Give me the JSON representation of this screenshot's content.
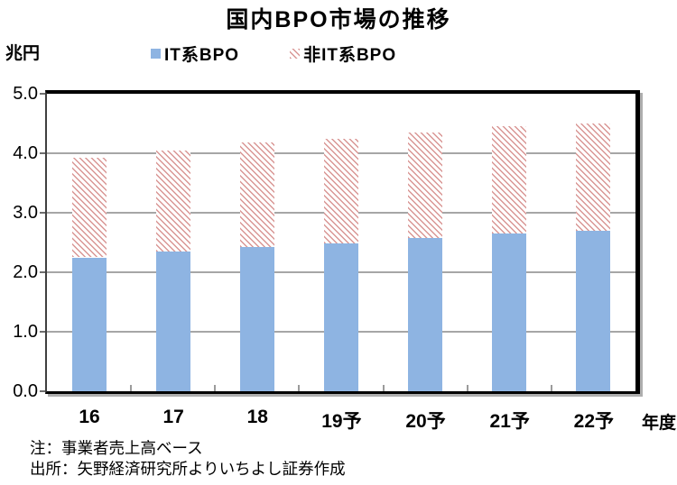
{
  "title": "国内BPO市場の推移",
  "y_unit_label": "兆円",
  "x_axis_suffix_label": "年度",
  "legend": [
    {
      "label": "IT系BPO",
      "swatch": "solid-blue"
    },
    {
      "label": "非IT系BPO",
      "swatch": "pink-diagonal-hatch"
    }
  ],
  "notes": [
    "注：事業者売上高ベース",
    "出所：矢野経済研究所よりいちよし証券作成"
  ],
  "colors": {
    "it_bpo_fill": "#8EB4E2",
    "non_it_bpo_hatch": "#D99694",
    "gridline": "#A6A6A6",
    "axis": "#000000",
    "frame_shadow": "#AEAEAE"
  },
  "chart_data": {
    "type": "bar",
    "stacked": true,
    "title": "国内BPO市場の推移",
    "ylabel": "兆円",
    "xlabel": "年度",
    "categories": [
      "16",
      "17",
      "18",
      "19予",
      "20予",
      "21予",
      "22予"
    ],
    "series": [
      {
        "name": "IT系BPO",
        "values": [
          2.25,
          2.35,
          2.42,
          2.48,
          2.58,
          2.65,
          2.7
        ]
      },
      {
        "name": "非IT系BPO",
        "values": [
          1.68,
          1.7,
          1.76,
          1.77,
          1.77,
          1.8,
          1.8
        ]
      }
    ],
    "totals": [
      3.93,
      4.05,
      4.18,
      4.25,
      4.35,
      4.45,
      4.5
    ],
    "ylim": [
      0.0,
      5.0
    ],
    "ytick_interval": 1.0,
    "yticks": [
      "0.0",
      "1.0",
      "2.0",
      "3.0",
      "4.0",
      "5.0"
    ],
    "grid": true,
    "legend_position": "top",
    "notes": [
      "注：事業者売上高ベース",
      "出所：矢野経済研究所よりいちよし証券作成"
    ]
  }
}
